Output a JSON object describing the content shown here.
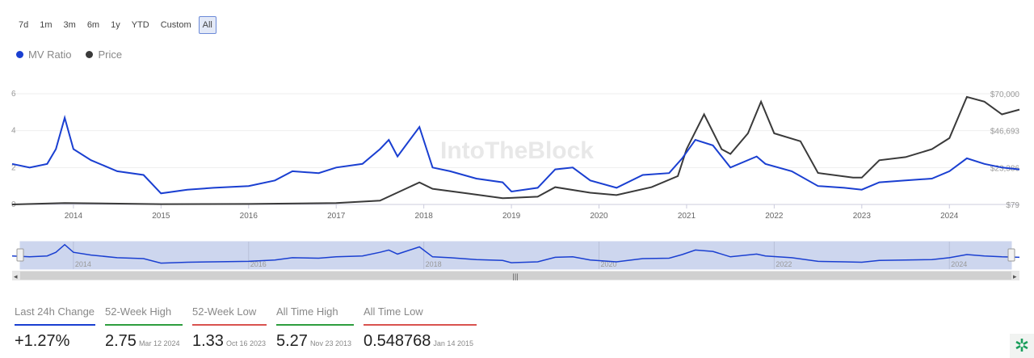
{
  "range_buttons": [
    "7d",
    "1m",
    "3m",
    "6m",
    "1y",
    "YTD",
    "Custom",
    "All"
  ],
  "active_range": "All",
  "watermark": "IntoTheBlock",
  "chart_data": {
    "type": "line",
    "legend": [
      {
        "name": "MV Ratio",
        "color": "#1a3fd1"
      },
      {
        "name": "Price",
        "color": "#3a3a3a"
      }
    ],
    "x_ticks": [
      "2014",
      "2015",
      "2016",
      "2017",
      "2018",
      "2019",
      "2020",
      "2021",
      "2022",
      "2023",
      "2024"
    ],
    "navigator_ticks": [
      "2014",
      "2016",
      "2018",
      "2020",
      "2022",
      "2024"
    ],
    "y_left": {
      "ticks": [
        "0",
        "2",
        "4",
        "6"
      ],
      "range": [
        0,
        6
      ]
    },
    "y_right": {
      "ticks": [
        "$79",
        "$23,386",
        "$46,693",
        "$70,000"
      ],
      "range": [
        79,
        70000
      ]
    },
    "x_range": [
      2013.3,
      2024.8
    ],
    "series": [
      {
        "name": "MV Ratio",
        "axis": "left",
        "points": [
          [
            2013.3,
            2.2
          ],
          [
            2013.5,
            2.0
          ],
          [
            2013.7,
            2.2
          ],
          [
            2013.8,
            3.0
          ],
          [
            2013.9,
            4.7
          ],
          [
            2014.0,
            3.0
          ],
          [
            2014.2,
            2.4
          ],
          [
            2014.5,
            1.8
          ],
          [
            2014.8,
            1.6
          ],
          [
            2015.0,
            0.6
          ],
          [
            2015.3,
            0.8
          ],
          [
            2015.6,
            0.9
          ],
          [
            2016.0,
            1.0
          ],
          [
            2016.3,
            1.3
          ],
          [
            2016.5,
            1.8
          ],
          [
            2016.8,
            1.7
          ],
          [
            2017.0,
            2.0
          ],
          [
            2017.3,
            2.2
          ],
          [
            2017.5,
            3.0
          ],
          [
            2017.6,
            3.5
          ],
          [
            2017.7,
            2.6
          ],
          [
            2017.95,
            4.2
          ],
          [
            2018.1,
            2.0
          ],
          [
            2018.3,
            1.8
          ],
          [
            2018.6,
            1.4
          ],
          [
            2018.9,
            1.2
          ],
          [
            2019.0,
            0.7
          ],
          [
            2019.3,
            0.9
          ],
          [
            2019.5,
            1.9
          ],
          [
            2019.7,
            2.0
          ],
          [
            2019.9,
            1.3
          ],
          [
            2020.2,
            0.9
          ],
          [
            2020.5,
            1.6
          ],
          [
            2020.8,
            1.7
          ],
          [
            2020.95,
            2.5
          ],
          [
            2021.1,
            3.5
          ],
          [
            2021.3,
            3.2
          ],
          [
            2021.5,
            2.0
          ],
          [
            2021.8,
            2.6
          ],
          [
            2021.9,
            2.2
          ],
          [
            2022.2,
            1.8
          ],
          [
            2022.5,
            1.0
          ],
          [
            2022.8,
            0.9
          ],
          [
            2023.0,
            0.8
          ],
          [
            2023.2,
            1.2
          ],
          [
            2023.5,
            1.3
          ],
          [
            2023.8,
            1.4
          ],
          [
            2024.0,
            1.8
          ],
          [
            2024.2,
            2.5
          ],
          [
            2024.4,
            2.2
          ],
          [
            2024.6,
            2.0
          ],
          [
            2024.8,
            1.9
          ]
        ]
      },
      {
        "name": "Price",
        "axis": "right",
        "points": [
          [
            2013.3,
            100
          ],
          [
            2013.9,
            1000
          ],
          [
            2015.0,
            300
          ],
          [
            2016.0,
            400
          ],
          [
            2017.0,
            1000
          ],
          [
            2017.5,
            2500
          ],
          [
            2017.95,
            14000
          ],
          [
            2018.1,
            10000
          ],
          [
            2018.5,
            7000
          ],
          [
            2018.9,
            4000
          ],
          [
            2019.3,
            5000
          ],
          [
            2019.5,
            11000
          ],
          [
            2019.9,
            7500
          ],
          [
            2020.2,
            6000
          ],
          [
            2020.6,
            11000
          ],
          [
            2020.9,
            18000
          ],
          [
            2021.0,
            35000
          ],
          [
            2021.2,
            57000
          ],
          [
            2021.4,
            35000
          ],
          [
            2021.5,
            32000
          ],
          [
            2021.7,
            45000
          ],
          [
            2021.85,
            65000
          ],
          [
            2022.0,
            45000
          ],
          [
            2022.3,
            40000
          ],
          [
            2022.5,
            20000
          ],
          [
            2022.9,
            17000
          ],
          [
            2023.0,
            17000
          ],
          [
            2023.2,
            28000
          ],
          [
            2023.5,
            30000
          ],
          [
            2023.8,
            35000
          ],
          [
            2024.0,
            42000
          ],
          [
            2024.2,
            68000
          ],
          [
            2024.4,
            65000
          ],
          [
            2024.6,
            57000
          ],
          [
            2024.8,
            60000
          ]
        ]
      }
    ]
  },
  "stats": [
    {
      "label": "Last 24h Change",
      "value": "+1.27%",
      "date": "",
      "color": "#1a3fd1"
    },
    {
      "label": "52-Week High",
      "value": "2.75",
      "date": "Mar 12 2024",
      "color": "#2e9e3e"
    },
    {
      "label": "52-Week Low",
      "value": "1.33",
      "date": "Oct 16 2023",
      "color": "#d9534f"
    },
    {
      "label": "All Time High",
      "value": "5.27",
      "date": "Nov 23 2013",
      "color": "#2e9e3e"
    },
    {
      "label": "All Time Low",
      "value": "0.548768",
      "date": "Jan 14 2015",
      "color": "#d9534f"
    }
  ]
}
